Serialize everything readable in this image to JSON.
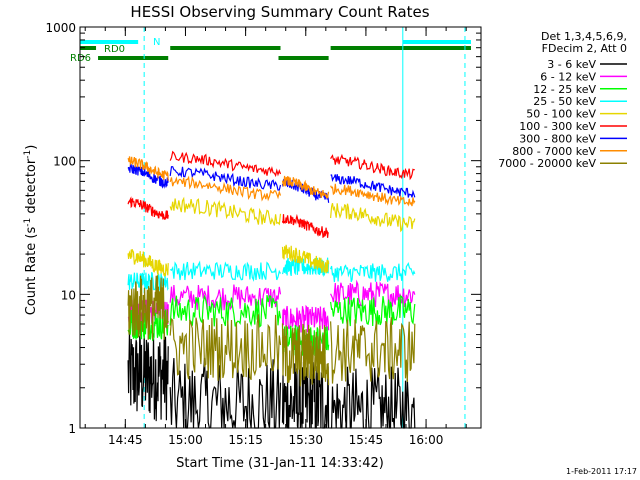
{
  "chart_data": {
    "type": "line",
    "title": "HESSI Observing Summary Count Rates",
    "xlabel": "Start Time (31-Jan-11 14:33:42)",
    "ylabel_main": "Count Rate (s",
    "ylabel_sup1": "-1",
    "ylabel_mid": " detector",
    "ylabel_sup2": "-1",
    "ylabel_end": ")",
    "yscale": "log",
    "ylim": [
      1,
      1000
    ],
    "xlim_minutes": [
      0,
      100
    ],
    "x_ticks": [
      {
        "label": "14:45",
        "minutes": 11.3
      },
      {
        "label": "15:00",
        "minutes": 26.3
      },
      {
        "label": "15:15",
        "minutes": 41.3
      },
      {
        "label": "15:30",
        "minutes": 56.3
      },
      {
        "label": "15:45",
        "minutes": 71.3
      },
      {
        "label": "16:00",
        "minutes": 86.3
      }
    ],
    "y_ticks": [
      {
        "label": "1",
        "value": 1
      },
      {
        "label": "10",
        "value": 10
      },
      {
        "label": "100",
        "value": 100
      },
      {
        "label": "1000",
        "value": 1000
      }
    ],
    "legend_header": [
      "Det 1,3,4,5,6,9,",
      "FDecim 2, Att 0"
    ],
    "legend_position": "right",
    "footer_timestamp": "1-Feb-2011 17:17",
    "segments_minutes": [
      [
        12,
        22
      ],
      [
        22.5,
        50
      ],
      [
        50.5,
        62
      ],
      [
        62.5,
        83.5
      ]
    ],
    "series": [
      {
        "name": "3 - 6 keV",
        "color": "#000000",
        "levels": [
          2.5,
          1.5,
          1.5,
          1.3
        ],
        "noise": 0.35
      },
      {
        "name": "6 - 12 keV",
        "color": "#ff00ff",
        "levels": [
          7.5,
          9.5,
          6.5,
          10.0
        ],
        "noise": 0.1
      },
      {
        "name": "12 - 25 keV",
        "color": "#00ff00",
        "levels": [
          6.0,
          7.5,
          4.5,
          7.5
        ],
        "noise": 0.12
      },
      {
        "name": "25 - 50 keV",
        "color": "#00ffff",
        "levels": [
          12.5,
          15.0,
          16.0,
          14.5
        ],
        "noise": 0.07
      },
      {
        "name": "50 - 100 keV",
        "color": "#e6d600",
        "levels": [
          17.5,
          42.0,
          18.5,
          38.0
        ],
        "noise": 0.06
      },
      {
        "name": "100 - 300 keV",
        "color": "#ff0000",
        "levels": [
          44.0,
          95.0,
          33.0,
          90.0
        ],
        "noise": 0.04
      },
      {
        "name": "300 - 800 keV",
        "color": "#0000ff",
        "levels": [
          78.0,
          74.0,
          60.0,
          65.0
        ],
        "noise": 0.04
      },
      {
        "name": "800 - 7000 keV",
        "color": "#ff8c00",
        "levels": [
          88.0,
          62.0,
          63.0,
          55.0
        ],
        "noise": 0.04
      },
      {
        "name": "7000 - 20000 keV",
        "color": "#8b8000",
        "levels": [
          8.0,
          4.0,
          3.5,
          3.8
        ],
        "noise": 0.25
      }
    ],
    "event_labels": [
      {
        "text": "N",
        "color": "#00ffff"
      },
      {
        "text": "RD0",
        "color": "#007f00"
      },
      {
        "text": "RD6",
        "color": "#007f00"
      }
    ],
    "event_bars": [
      {
        "row": "N",
        "color": "#00ffff",
        "ranges": [
          [
            0,
            14.5
          ],
          [
            80.5,
            97.5
          ]
        ]
      },
      {
        "row": "RD0",
        "color": "#007f00",
        "ranges": [
          [
            0,
            4
          ],
          [
            22.5,
            50
          ],
          [
            62.5,
            97.5
          ]
        ]
      },
      {
        "row": "RD6",
        "color": "#007f00",
        "ranges": [
          [
            4.5,
            22
          ],
          [
            49.5,
            62
          ]
        ]
      }
    ],
    "vlines_minutes": {
      "cyan_solid": [
        0,
        80.5
      ],
      "cyan_dashed": [
        16,
        96
      ]
    },
    "axis_color": "#000000",
    "grid": false
  }
}
